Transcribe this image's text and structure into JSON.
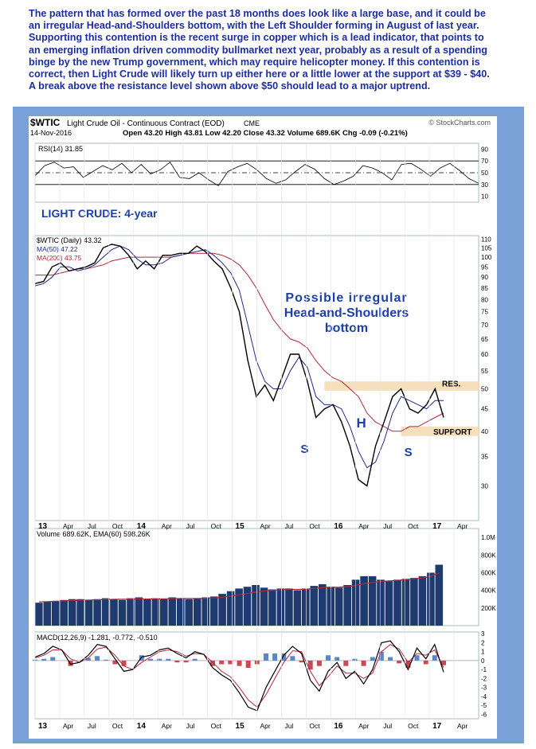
{
  "intro_text": "The pattern that has formed over the past 18 months does look like a large base, and it could be an irregular Head-and-Shoulders bottom, with the Left Shoulder forming in August of last year. Supporting this contention is the recent surge in copper which is a lead indicator, that points to an emerging inflation driven commodity bullmarket next year, probably as a result of a spending binge by the new Trump government, which may require helicopter money. If this contention is correct, then Light Crude will likely turn up either here or a little lower at the support at $39 - $40. A break above the resistance level shown above $50 should lead to a major uptrend.",
  "header": {
    "symbol": "$WTIC",
    "description": "Light Crude Oil - Continuous Contract (EOD)",
    "exchange": "CME",
    "watermark": "© StockCharts.com",
    "date": "14-Nov-2016",
    "ohlc": "Open 43.20  High 43.81  Low 42.20  Close 43.32  Volume 689.6K  Chg -0.09 (-0.21%)"
  },
  "colors": {
    "frame": "#7aa0d8",
    "price": "#000000",
    "ma50": "#1f2a8a",
    "ma200": "#b0283c",
    "volume": "#1f3a6e",
    "resistance_band": "#f5d9b0",
    "annotation": "#1d3fa8",
    "macd_pos": "#5b86c8",
    "macd_neg": "#c84a55"
  },
  "chart_data": [
    {
      "type": "line",
      "panel": "rsi",
      "legend": "RSI(14) 31.85",
      "ylim": [
        0,
        100
      ],
      "yticks": [
        90,
        70,
        50,
        30,
        10
      ],
      "reference_lines": [
        70,
        50,
        30
      ],
      "series": [
        {
          "name": "RSI(14)",
          "values": [
            45,
            62,
            68,
            58,
            60,
            42,
            52,
            62,
            55,
            66,
            50,
            64,
            48,
            55,
            68,
            42,
            40,
            50,
            38,
            28,
            52,
            60,
            66,
            55,
            40,
            32,
            38,
            52,
            64,
            56,
            40,
            30,
            36,
            44,
            62,
            58,
            50,
            38,
            64,
            66,
            56,
            44,
            58,
            66,
            54,
            40,
            32
          ]
        }
      ],
      "annotation": "LIGHT CRUDE: 4-year"
    },
    {
      "type": "line",
      "panel": "price",
      "legend": [
        "$WTIC (Daily) 43.32",
        "MA(50) 47.22",
        "MA(200) 43.75"
      ],
      "ylim": [
        25,
        112
      ],
      "yscale": "log",
      "yticks": [
        110,
        105,
        100,
        95,
        90,
        85,
        80,
        75,
        70,
        65,
        60,
        55,
        50,
        45,
        40,
        35,
        30
      ],
      "x": [
        "2012-11",
        "2012-12",
        "2013-01",
        "2013-02",
        "2013-03",
        "2013-04",
        "2013-05",
        "2013-06",
        "2013-07",
        "2013-08",
        "2013-09",
        "2013-10",
        "2013-11",
        "2013-12",
        "2014-01",
        "2014-02",
        "2014-03",
        "2014-04",
        "2014-05",
        "2014-06",
        "2014-07",
        "2014-08",
        "2014-09",
        "2014-10",
        "2014-11",
        "2014-12",
        "2015-01",
        "2015-02",
        "2015-03",
        "2015-04",
        "2015-05",
        "2015-06",
        "2015-07",
        "2015-08",
        "2015-09",
        "2015-10",
        "2015-11",
        "2015-12",
        "2016-01",
        "2016-02",
        "2016-03",
        "2016-04",
        "2016-05",
        "2016-06",
        "2016-07",
        "2016-08",
        "2016-09",
        "2016-10",
        "2016-11"
      ],
      "series": [
        {
          "name": "$WTIC",
          "values": [
            87,
            88,
            95,
            97,
            93,
            94,
            95,
            97,
            105,
            107,
            106,
            101,
            94,
            98,
            94,
            101,
            101,
            102,
            102,
            106,
            103,
            98,
            94,
            85,
            75,
            58,
            48,
            51,
            47,
            53,
            60,
            60,
            52,
            43,
            45,
            46,
            42,
            37,
            31,
            30,
            37,
            42,
            48,
            50,
            45,
            44,
            46,
            50,
            43
          ]
        },
        {
          "name": "MA(50)",
          "values": [
            86,
            87,
            90,
            95,
            95,
            93,
            94,
            96,
            100,
            104,
            106,
            104,
            99,
            96,
            96,
            97,
            100,
            101,
            102,
            103,
            104,
            101,
            97,
            92,
            84,
            70,
            58,
            52,
            50,
            50,
            55,
            59,
            56,
            48,
            46,
            46,
            45,
            41,
            36,
            33,
            34,
            38,
            44,
            48,
            47,
            46,
            45,
            47,
            47
          ]
        },
        {
          "name": "MA(200)",
          "values": [
            91,
            91,
            91,
            92,
            93,
            94,
            94,
            95,
            96,
            98,
            99,
            100,
            100,
            100,
            100,
            100,
            100,
            101,
            102,
            102,
            102,
            102,
            101,
            99,
            96,
            91,
            85,
            78,
            72,
            68,
            65,
            64,
            62,
            58,
            55,
            53,
            52,
            50,
            48,
            44,
            42,
            41,
            40,
            40,
            41,
            41,
            42,
            43,
            44
          ]
        }
      ],
      "annotations": [
        "Possible irregular",
        "Head-and-Shoulders",
        "bottom",
        "S",
        "H",
        "S",
        "RES.",
        "SUPPORT"
      ],
      "resistance": [
        49.5,
        52
      ],
      "support": [
        39,
        41
      ]
    },
    {
      "type": "bar",
      "panel": "volume",
      "legend": "Volume 689.62K, EMA(60) 598.26K",
      "ylim": [
        0,
        1100000
      ],
      "yticks": [
        "1.0M",
        "800K",
        "600K",
        "400K",
        "200K"
      ],
      "series": [
        {
          "name": "Volume",
          "values": [
            260000,
            270000,
            280000,
            290000,
            300000,
            300000,
            290000,
            300000,
            310000,
            300000,
            290000,
            310000,
            320000,
            300000,
            310000,
            300000,
            320000,
            310000,
            300000,
            310000,
            320000,
            330000,
            360000,
            390000,
            420000,
            440000,
            460000,
            430000,
            410000,
            420000,
            420000,
            400000,
            420000,
            450000,
            470000,
            440000,
            430000,
            460000,
            520000,
            560000,
            560000,
            520000,
            510000,
            520000,
            530000,
            540000,
            560000,
            600000,
            689620
          ]
        },
        {
          "name": "EMA(60)",
          "values": [
            270000,
            272000,
            276000,
            280000,
            284000,
            288000,
            290000,
            292000,
            296000,
            298000,
            298000,
            300000,
            302000,
            302000,
            304000,
            304000,
            306000,
            308000,
            308000,
            308000,
            310000,
            314000,
            322000,
            334000,
            350000,
            364000,
            380000,
            392000,
            400000,
            406000,
            410000,
            410000,
            412000,
            420000,
            430000,
            434000,
            436000,
            442000,
            456000,
            474000,
            490000,
            500000,
            506000,
            512000,
            520000,
            530000,
            540000,
            560000,
            598260
          ]
        }
      ]
    },
    {
      "type": "line",
      "panel": "macd",
      "legend": "MACD(12,26,9) -1.281, -0.772, -0.510",
      "ylim": [
        -6.5,
        3.2
      ],
      "yticks": [
        3,
        2,
        1,
        0,
        -1,
        -2,
        -3,
        -4,
        -5,
        -6
      ],
      "series": [
        {
          "name": "MACD",
          "values": [
            0.4,
            0.8,
            1.6,
            1.2,
            -0.4,
            -0.2,
            0.6,
            1.8,
            1.6,
            0.2,
            -1.2,
            -1.0,
            0.4,
            0.6,
            1.2,
            1.4,
            0.8,
            0.3,
            1.0,
            0.7,
            -0.8,
            -1.6,
            -2.2,
            -3.6,
            -5.2,
            -5.6,
            -3.0,
            -1.2,
            0.6,
            1.6,
            0.8,
            -2.2,
            -3.4,
            -1.2,
            -0.2,
            -2.0,
            -1.2,
            -2.6,
            -1.0,
            2.0,
            2.2,
            1.0,
            -1.0,
            1.4,
            0.2,
            1.8,
            -1.281
          ]
        },
        {
          "name": "Signal",
          "values": [
            0.3,
            0.6,
            1.2,
            1.2,
            0.2,
            -0.2,
            0.3,
            1.3,
            1.5,
            0.6,
            -0.6,
            -1.0,
            -0.2,
            0.4,
            1.0,
            1.2,
            1.0,
            0.5,
            0.8,
            0.7,
            -0.2,
            -1.2,
            -1.8,
            -3.0,
            -4.4,
            -5.2,
            -3.8,
            -2.0,
            -0.2,
            1.1,
            1.0,
            -1.2,
            -2.8,
            -1.8,
            -0.6,
            -1.4,
            -1.4,
            -2.0,
            -1.4,
            1.0,
            1.8,
            1.3,
            -0.2,
            0.8,
            0.6,
            1.2,
            -0.772
          ]
        }
      ]
    }
  ],
  "x_axis_labels": [
    "13",
    "Apr",
    "Jul",
    "Oct",
    "14",
    "Apr",
    "Jul",
    "Oct",
    "15",
    "Apr",
    "Jul",
    "Oct",
    "16",
    "Apr",
    "Jul",
    "Oct",
    "17",
    "Apr"
  ]
}
